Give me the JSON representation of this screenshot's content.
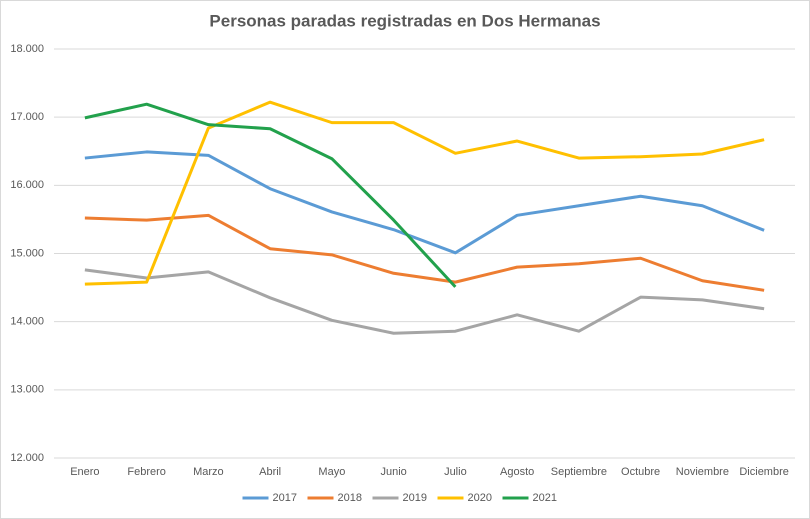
{
  "chart_data": {
    "type": "line",
    "title": "Personas paradas registradas en Dos Hermanas",
    "categories": [
      "Enero",
      "Febrero",
      "Marzo",
      "Abril",
      "Mayo",
      "Junio",
      "Julio",
      "Agosto",
      "Septiembre",
      "Octubre",
      "Noviembre",
      "Diciembre"
    ],
    "series": [
      {
        "name": "2017",
        "color": "#5b9bd5",
        "values": [
          16400,
          16490,
          16440,
          15950,
          15610,
          15350,
          15010,
          15560,
          15700,
          15840,
          15700,
          15340
        ]
      },
      {
        "name": "2018",
        "color": "#ed7d31",
        "values": [
          15520,
          15490,
          15560,
          15070,
          14980,
          14710,
          14580,
          14800,
          14850,
          14930,
          14600,
          14460
        ]
      },
      {
        "name": "2019",
        "color": "#a5a5a5",
        "values": [
          14760,
          14640,
          14730,
          14350,
          14020,
          13830,
          13860,
          14100,
          13860,
          14360,
          14320,
          14190
        ]
      },
      {
        "name": "2020",
        "color": "#ffc000",
        "values": [
          14550,
          14580,
          16840,
          17220,
          16920,
          16920,
          16470,
          16650,
          16400,
          16420,
          16460,
          16670
        ]
      },
      {
        "name": "2021",
        "color": "#22a14c",
        "values": [
          16990,
          17190,
          16890,
          16830,
          16390,
          15490,
          14510,
          null,
          null,
          null,
          null,
          null
        ]
      }
    ],
    "ylim": [
      12000,
      18000
    ],
    "yticks": [
      {
        "value": 12000,
        "label": "12.000"
      },
      {
        "value": 13000,
        "label": "13.000"
      },
      {
        "value": 14000,
        "label": "14.000"
      },
      {
        "value": 15000,
        "label": "15.000"
      },
      {
        "value": 16000,
        "label": "16.000"
      },
      {
        "value": 17000,
        "label": "17.000"
      },
      {
        "value": 18000,
        "label": "18.000"
      }
    ],
    "grid": true,
    "legend": "bottom"
  }
}
